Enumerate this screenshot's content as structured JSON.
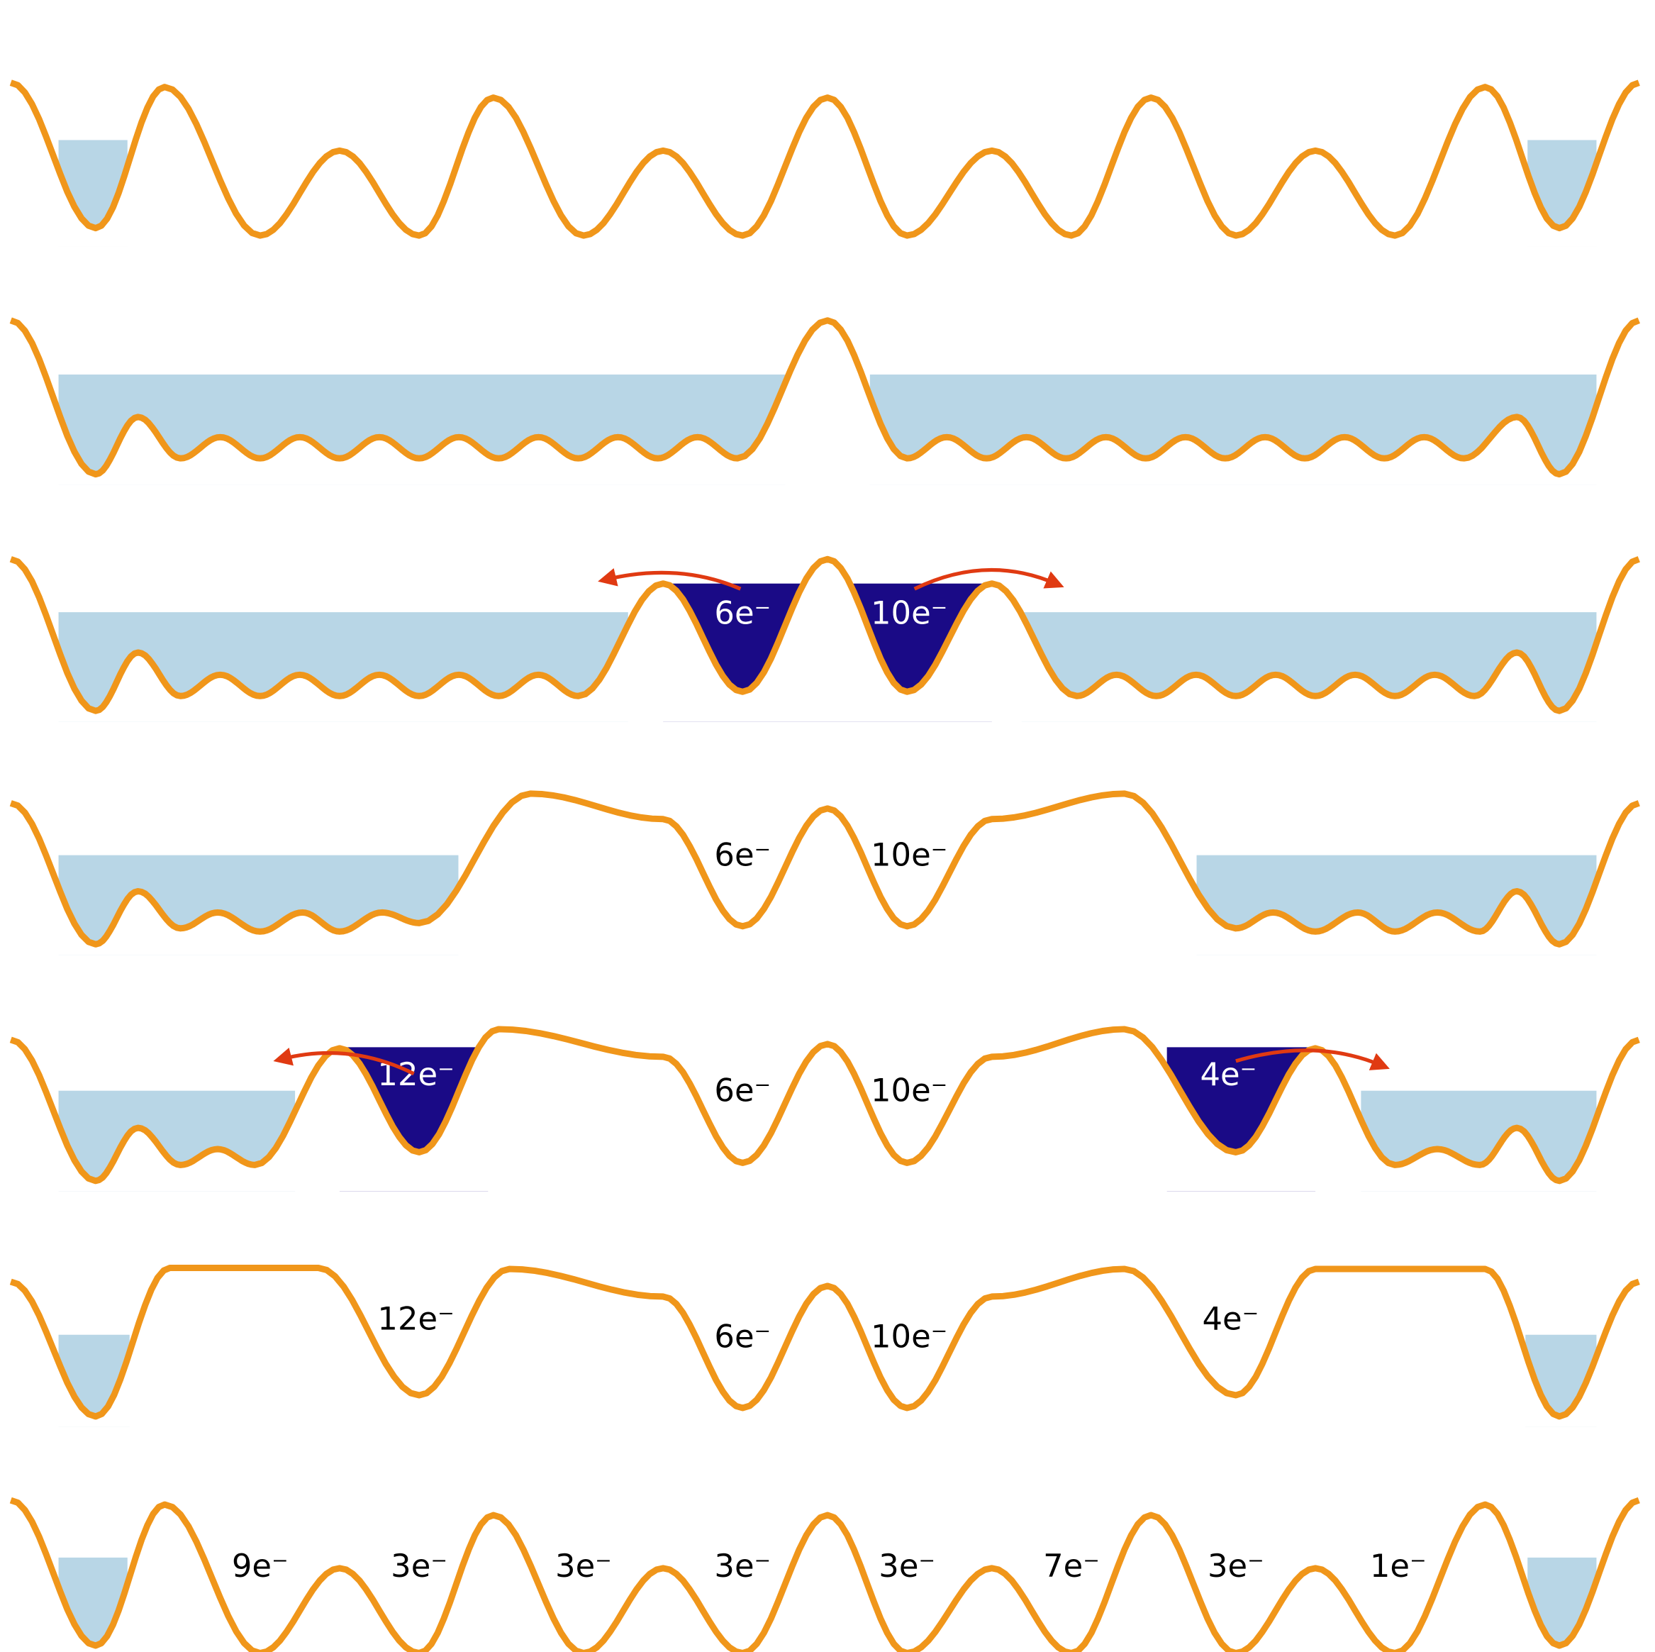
{
  "rows": [
    {
      "labels": []
    },
    {
      "labels": []
    },
    {
      "labels": [
        "6e⁻",
        "10e⁻"
      ]
    },
    {
      "labels": [
        "6e⁻",
        "10e⁻"
      ]
    },
    {
      "labels": [
        "12e⁻",
        "6e⁻",
        "10e⁻",
        "4e⁻"
      ]
    },
    {
      "labels": [
        "12e⁻",
        "6e⁻",
        "10e⁻",
        "4e⁻"
      ]
    },
    {
      "labels": [
        "9e⁻",
        "3e⁻",
        "3e⁻",
        "3e⁻",
        "3e⁻",
        "7e⁻",
        "3e⁻",
        "1e⁻"
      ]
    }
  ]
}
